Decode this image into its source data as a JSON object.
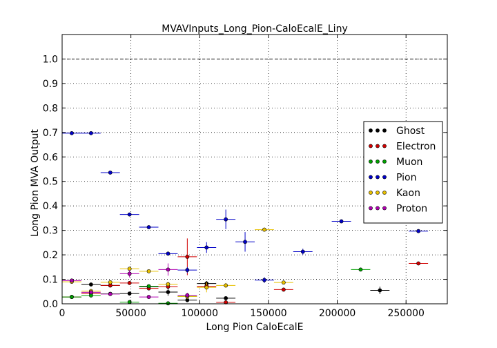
{
  "chart_data": {
    "type": "scatter",
    "title": "MVAVInputs_Long_Pion-CaloEcalE_Liny",
    "xlabel": "Long Pion CaloEcalE",
    "ylabel": "Long Pion MVA Output",
    "xlim": [
      0,
      280000
    ],
    "ylim": [
      0,
      1.1
    ],
    "xticks": [
      0,
      50000,
      100000,
      150000,
      200000,
      250000
    ],
    "xtick_labels": [
      "0",
      "50000",
      "100000",
      "150000",
      "200000",
      "250000"
    ],
    "yticks": [
      0.0,
      0.1,
      0.2,
      0.3,
      0.4,
      0.5,
      0.6,
      0.7,
      0.8,
      0.9,
      1.0
    ],
    "ytick_labels": [
      "0.0",
      "0.1",
      "0.2",
      "0.3",
      "0.4",
      "0.5",
      "0.6",
      "0.7",
      "0.8",
      "0.9",
      "1.0"
    ],
    "grid": true,
    "reference_line": 1.0,
    "legend_position": "center-right",
    "series": [
      {
        "name": "Ghost",
        "color": "#000000",
        "points": [
          {
            "x": 7000,
            "y": 0.028,
            "xerr": 7000,
            "yerr": 0.003
          },
          {
            "x": 21000,
            "y": 0.079,
            "xerr": 7000,
            "yerr": 0.003
          },
          {
            "x": 35000,
            "y": 0.075,
            "xerr": 7000,
            "yerr": 0.003
          },
          {
            "x": 49000,
            "y": 0.042,
            "xerr": 7000,
            "yerr": 0.003
          },
          {
            "x": 63000,
            "y": 0.07,
            "xerr": 7000,
            "yerr": 0.005
          },
          {
            "x": 77000,
            "y": 0.048,
            "xerr": 7000,
            "yerr": 0.015
          },
          {
            "x": 91000,
            "y": 0.015,
            "xerr": 7000,
            "yerr": 0.005
          },
          {
            "x": 105000,
            "y": 0.083,
            "xerr": 7000,
            "yerr": 0.01
          },
          {
            "x": 119000,
            "y": 0.023,
            "xerr": 7000,
            "yerr": 0.005
          },
          {
            "x": 231000,
            "y": 0.055,
            "xerr": 7000,
            "yerr": 0.015
          }
        ]
      },
      {
        "name": "Electron",
        "color": "#d10000",
        "points": [
          {
            "x": 7000,
            "y": 0.028,
            "xerr": 7000,
            "yerr": 0.003
          },
          {
            "x": 21000,
            "y": 0.042,
            "xerr": 7000,
            "yerr": 0.004
          },
          {
            "x": 35000,
            "y": 0.075,
            "xerr": 7000,
            "yerr": 0.004
          },
          {
            "x": 49000,
            "y": 0.085,
            "xerr": 7000,
            "yerr": 0.005
          },
          {
            "x": 63000,
            "y": 0.063,
            "xerr": 7000,
            "yerr": 0.005
          },
          {
            "x": 77000,
            "y": 0.07,
            "xerr": 7000,
            "yerr": 0.008
          },
          {
            "x": 91000,
            "y": 0.192,
            "xerr": 7000,
            "yerr": 0.075
          },
          {
            "x": 105000,
            "y": 0.072,
            "xerr": 7000,
            "yerr": 0.015
          },
          {
            "x": 119000,
            "y": 0.006,
            "xerr": 7000,
            "yerr": 0.004
          },
          {
            "x": 161000,
            "y": 0.058,
            "xerr": 7000,
            "yerr": 0.005
          },
          {
            "x": 259000,
            "y": 0.165,
            "xerr": 7000,
            "yerr": 0.005
          }
        ]
      },
      {
        "name": "Muon",
        "color": "#00a000",
        "points": [
          {
            "x": 7000,
            "y": 0.028,
            "xerr": 7000,
            "yerr": 0.003
          },
          {
            "x": 21000,
            "y": 0.034,
            "xerr": 7000,
            "yerr": 0.004
          },
          {
            "x": 35000,
            "y": 0.041,
            "xerr": 7000,
            "yerr": 0.004
          },
          {
            "x": 49000,
            "y": 0.007,
            "xerr": 7000,
            "yerr": 0.004
          },
          {
            "x": 63000,
            "y": 0.072,
            "xerr": 7000,
            "yerr": 0.005
          },
          {
            "x": 77000,
            "y": 0.002,
            "xerr": 7000,
            "yerr": 0.003
          },
          {
            "x": 91000,
            "y": 0.03,
            "xerr": 7000,
            "yerr": 0.004
          },
          {
            "x": 217000,
            "y": 0.14,
            "xerr": 7000,
            "yerr": 0.005
          }
        ]
      },
      {
        "name": "Pion",
        "color": "#0000c8",
        "points": [
          {
            "x": 7000,
            "y": 0.697,
            "xerr": 7000,
            "yerr": 0.002
          },
          {
            "x": 21000,
            "y": 0.697,
            "xerr": 7000,
            "yerr": 0.002
          },
          {
            "x": 35000,
            "y": 0.536,
            "xerr": 7000,
            "yerr": 0.003
          },
          {
            "x": 49000,
            "y": 0.365,
            "xerr": 7000,
            "yerr": 0.004
          },
          {
            "x": 63000,
            "y": 0.313,
            "xerr": 7000,
            "yerr": 0.004
          },
          {
            "x": 77000,
            "y": 0.205,
            "xerr": 7000,
            "yerr": 0.006
          },
          {
            "x": 91000,
            "y": 0.138,
            "xerr": 7000,
            "yerr": 0.012
          },
          {
            "x": 105000,
            "y": 0.23,
            "xerr": 7000,
            "yerr": 0.022
          },
          {
            "x": 119000,
            "y": 0.345,
            "xerr": 7000,
            "yerr": 0.04
          },
          {
            "x": 133000,
            "y": 0.253,
            "xerr": 7000,
            "yerr": 0.04
          },
          {
            "x": 147000,
            "y": 0.097,
            "xerr": 7000,
            "yerr": 0.012
          },
          {
            "x": 175000,
            "y": 0.213,
            "xerr": 7000,
            "yerr": 0.012
          },
          {
            "x": 203000,
            "y": 0.337,
            "xerr": 7000,
            "yerr": 0.004
          },
          {
            "x": 259000,
            "y": 0.297,
            "xerr": 7000,
            "yerr": 0.004
          }
        ]
      },
      {
        "name": "Kaon",
        "color": "#e8c000",
        "points": [
          {
            "x": 7000,
            "y": 0.09,
            "xerr": 7000,
            "yerr": 0.004
          },
          {
            "x": 21000,
            "y": 0.052,
            "xerr": 7000,
            "yerr": 0.004
          },
          {
            "x": 35000,
            "y": 0.088,
            "xerr": 7000,
            "yerr": 0.004
          },
          {
            "x": 49000,
            "y": 0.143,
            "xerr": 7000,
            "yerr": 0.006
          },
          {
            "x": 63000,
            "y": 0.133,
            "xerr": 7000,
            "yerr": 0.005
          },
          {
            "x": 77000,
            "y": 0.08,
            "xerr": 7000,
            "yerr": 0.01
          },
          {
            "x": 91000,
            "y": 0.03,
            "xerr": 7000,
            "yerr": 0.01
          },
          {
            "x": 105000,
            "y": 0.067,
            "xerr": 7000,
            "yerr": 0.02
          },
          {
            "x": 119000,
            "y": 0.075,
            "xerr": 7000,
            "yerr": 0.01
          },
          {
            "x": 147000,
            "y": 0.303,
            "xerr": 7000,
            "yerr": 0.004
          },
          {
            "x": 161000,
            "y": 0.087,
            "xerr": 7000,
            "yerr": 0.005
          }
        ]
      },
      {
        "name": "Proton",
        "color": "#b000b0",
        "points": [
          {
            "x": 7000,
            "y": 0.095,
            "xerr": 7000,
            "yerr": 0.004
          },
          {
            "x": 21000,
            "y": 0.047,
            "xerr": 7000,
            "yerr": 0.004
          },
          {
            "x": 35000,
            "y": 0.04,
            "xerr": 7000,
            "yerr": 0.004
          },
          {
            "x": 49000,
            "y": 0.123,
            "xerr": 7000,
            "yerr": 0.015
          },
          {
            "x": 63000,
            "y": 0.028,
            "xerr": 7000,
            "yerr": 0.004
          },
          {
            "x": 77000,
            "y": 0.14,
            "xerr": 7000,
            "yerr": 0.025
          },
          {
            "x": 91000,
            "y": 0.035,
            "xerr": 7000,
            "yerr": 0.01
          }
        ]
      }
    ]
  }
}
